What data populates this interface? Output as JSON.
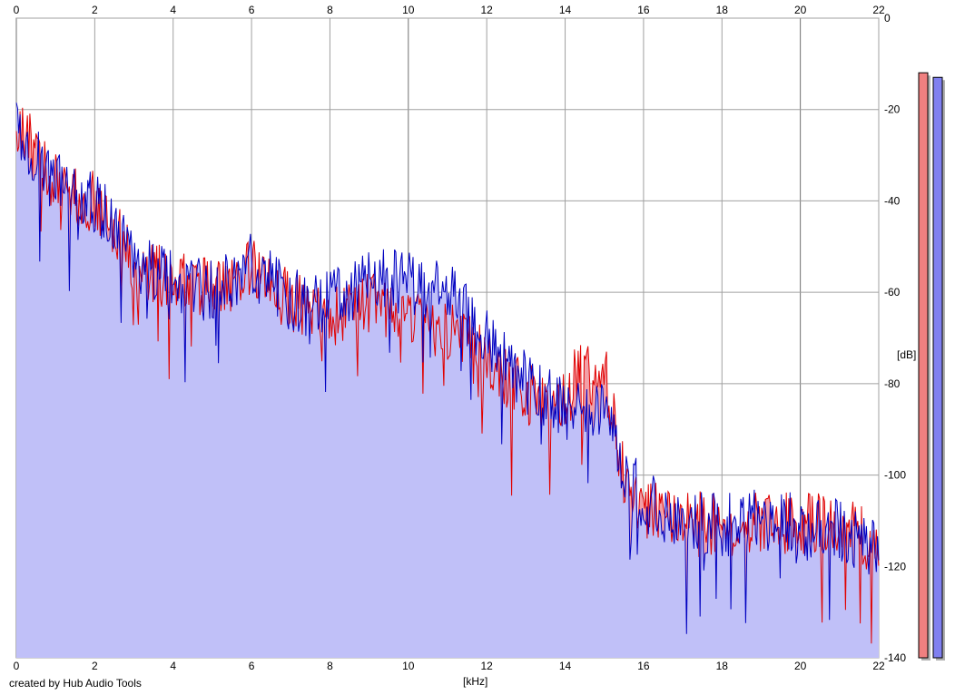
{
  "chart_data": {
    "type": "area",
    "xlabel": "[kHz]",
    "ylabel": "[dB]",
    "xlim": [
      0,
      22
    ],
    "ylim": [
      -140,
      0
    ],
    "x_ticks": [
      "0",
      "2",
      "4",
      "6",
      "8",
      "10",
      "12",
      "14",
      "16",
      "18",
      "20",
      "22"
    ],
    "y_ticks": [
      "0",
      "-20",
      "-40",
      "-60",
      "-80",
      "-100",
      "-120",
      "-140"
    ],
    "grid": true,
    "series": [
      {
        "color": "#e00000",
        "fill": "#f2a0a8",
        "envelope": [
          [
            0,
            -22
          ],
          [
            0.5,
            -30
          ],
          [
            1,
            -36
          ],
          [
            1.5,
            -39
          ],
          [
            2,
            -40
          ],
          [
            2.5,
            -45
          ],
          [
            3,
            -55
          ],
          [
            4,
            -57
          ],
          [
            5,
            -60
          ],
          [
            6,
            -55
          ],
          [
            7,
            -62
          ],
          [
            8,
            -65
          ],
          [
            9,
            -62
          ],
          [
            10,
            -65
          ],
          [
            11,
            -68
          ],
          [
            12,
            -75
          ],
          [
            13,
            -82
          ],
          [
            14,
            -85
          ],
          [
            14.3,
            -78
          ],
          [
            15,
            -78
          ],
          [
            15.2,
            -84
          ],
          [
            15.5,
            -100
          ],
          [
            16,
            -108
          ],
          [
            17,
            -110
          ],
          [
            18,
            -111
          ],
          [
            19,
            -110
          ],
          [
            20,
            -111
          ],
          [
            21,
            -111
          ],
          [
            22,
            -116
          ]
        ]
      },
      {
        "color": "#0000c0",
        "fill": "#c0c0f8",
        "envelope": [
          [
            0,
            -24
          ],
          [
            0.5,
            -31
          ],
          [
            1,
            -36
          ],
          [
            1.5,
            -38
          ],
          [
            2,
            -40
          ],
          [
            2.5,
            -46
          ],
          [
            3,
            -54
          ],
          [
            4,
            -57
          ],
          [
            5,
            -60
          ],
          [
            6,
            -54
          ],
          [
            7,
            -62
          ],
          [
            8,
            -62
          ],
          [
            9,
            -57
          ],
          [
            10,
            -58
          ],
          [
            11,
            -60
          ],
          [
            12,
            -70
          ],
          [
            13,
            -80
          ],
          [
            14,
            -86
          ],
          [
            15,
            -85
          ],
          [
            15.5,
            -98
          ],
          [
            16,
            -106
          ],
          [
            17,
            -110
          ],
          [
            18,
            -111
          ],
          [
            19,
            -110
          ],
          [
            20,
            -111
          ],
          [
            21,
            -112
          ],
          [
            22,
            -116
          ]
        ]
      }
    ],
    "level_meters": [
      {
        "color": "#f08080",
        "level_db": -6
      },
      {
        "color": "#8080f0",
        "level_db": -7
      }
    ]
  },
  "footer": {
    "credit": "created by Hub Audio Tools"
  }
}
